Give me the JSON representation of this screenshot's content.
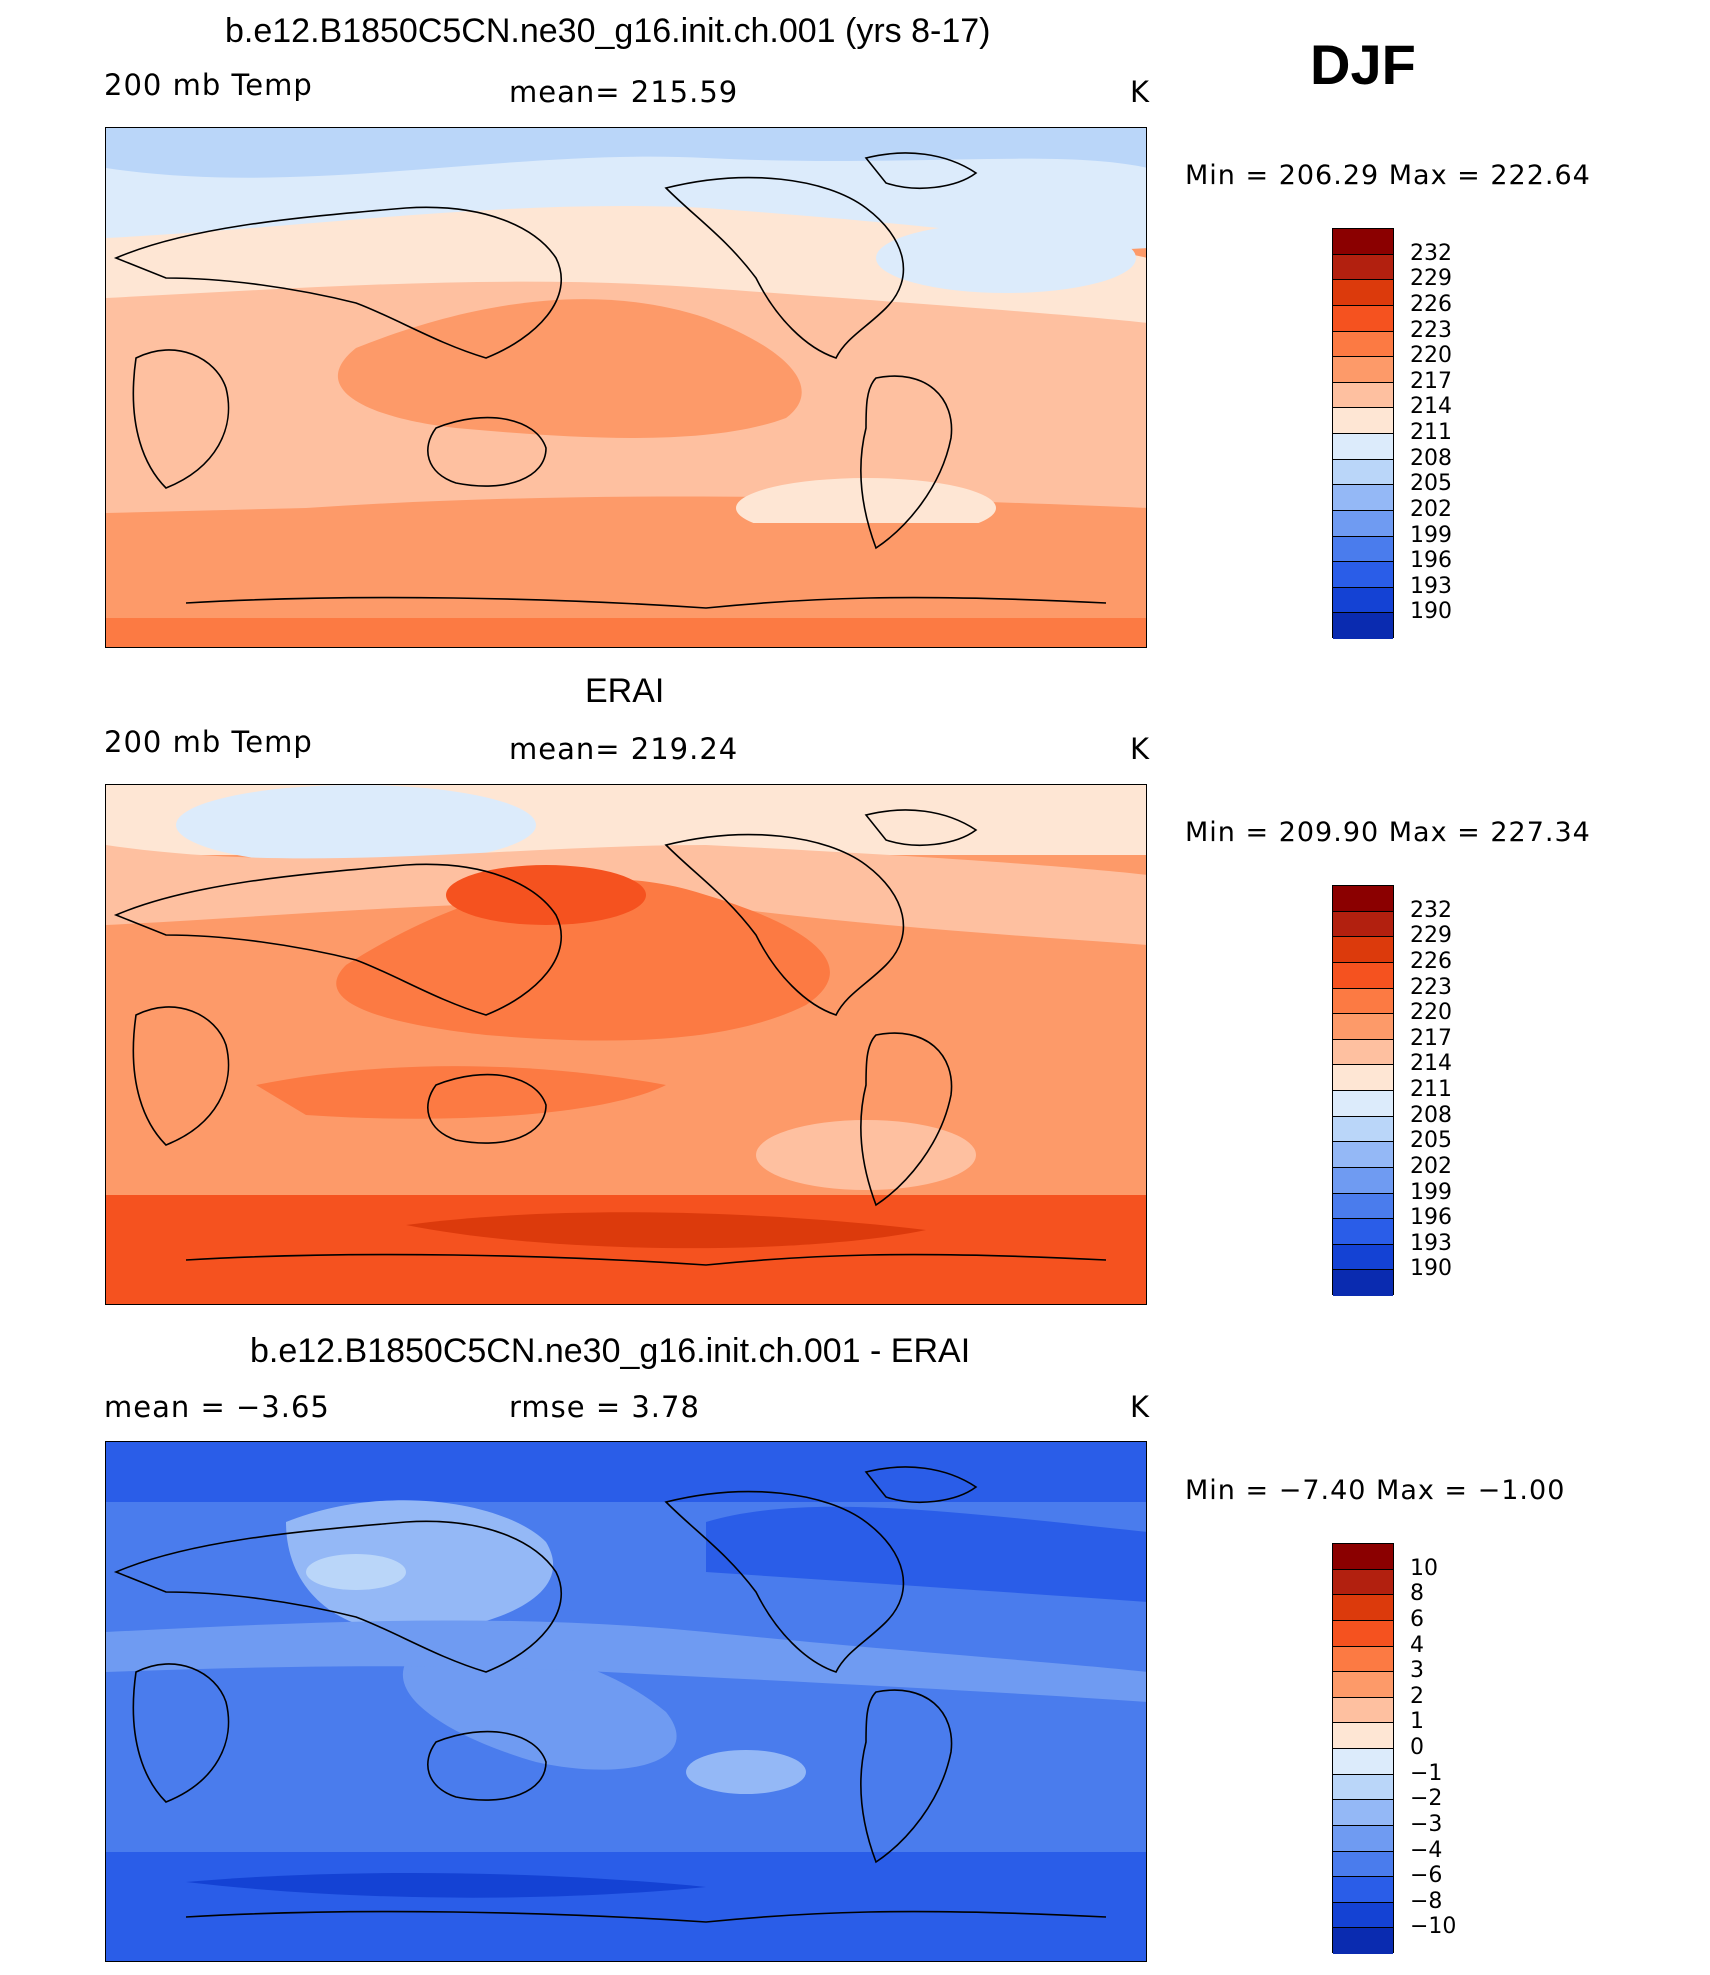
{
  "season": "DJF",
  "panels": [
    {
      "title": "b.e12.B1850C5CN.ne30_g16.init.ch.001 (yrs 8-17)",
      "left_label": "200 mb Temp",
      "center_label": "mean=  215.59",
      "units": "K",
      "minmax": "Min  =  206.29  Max  =  222.64"
    },
    {
      "title": "ERAI",
      "left_label": "200 mb Temp",
      "center_label": "mean=  219.24",
      "units": "K",
      "minmax": "Min  =  209.90  Max  =  227.34"
    },
    {
      "title": "b.e12.B1850C5CN.ne30_g16.init.ch.001 - ERAI",
      "left_label": "mean  =    −3.65",
      "center_label": "rmse  =     3.78",
      "units": "K",
      "minmax": "Min  =   −7.40  Max  =   −1.00"
    }
  ],
  "colorbar_temp": {
    "colors": [
      "#8b0000",
      "#b2200f",
      "#dc3a0c",
      "#f5521f",
      "#fc7a43",
      "#fd9a69",
      "#fec0a0",
      "#fee6d4",
      "#dcebfb",
      "#bad6f9",
      "#94b8f6",
      "#6f9bf2",
      "#4a7ced",
      "#2a5de8",
      "#1442d4",
      "#0a2bb0",
      "#00108a"
    ],
    "labels": [
      "232",
      "229",
      "226",
      "223",
      "220",
      "217",
      "214",
      "211",
      "208",
      "205",
      "202",
      "199",
      "196",
      "193",
      "190"
    ]
  },
  "colorbar_diff": {
    "colors": [
      "#8b0000",
      "#b2200f",
      "#dc3a0c",
      "#f5521f",
      "#fc7a43",
      "#fd9a69",
      "#fec0a0",
      "#fee6d4",
      "#dcebfb",
      "#bad6f9",
      "#94b8f6",
      "#6f9bf2",
      "#4a7ced",
      "#2a5de8",
      "#1442d4",
      "#0a2bb0",
      "#00108a"
    ],
    "labels": [
      "10",
      "8",
      "6",
      "4",
      "3",
      "2",
      "1",
      "0",
      "−1",
      "−2",
      "−3",
      "−4",
      "−6",
      "−8",
      "−10"
    ]
  }
}
